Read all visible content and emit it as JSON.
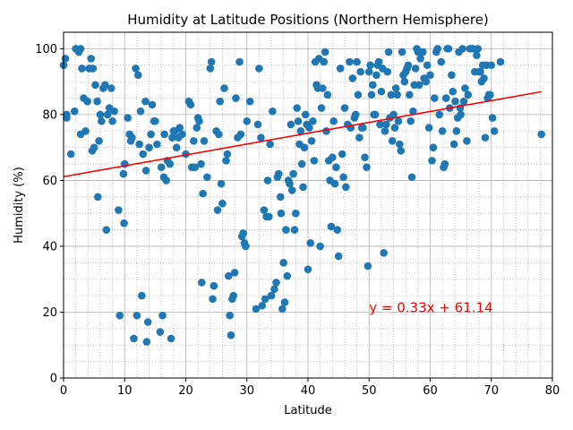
{
  "chart_data": {
    "type": "scatter",
    "title": "Humidity at Latitude Positions (Northern Hemisphere)",
    "xlabel": "Latitude",
    "ylabel": "Humidity (%)",
    "xlim": [
      0,
      80
    ],
    "ylim": [
      0,
      105
    ],
    "xticks": [
      "0",
      "10",
      "20",
      "30",
      "40",
      "50",
      "60",
      "70",
      "80"
    ],
    "yticks": [
      "0",
      "20",
      "40",
      "60",
      "80",
      "100"
    ],
    "grid": "major solid, minor dotted",
    "point_color": "#1f77b4",
    "regression": {
      "slope": 0.33,
      "intercept": 61.14,
      "x_range": [
        0,
        78.2
      ],
      "color": "#ff0000"
    },
    "annotation": {
      "text": "y = 0.33x + 61.14",
      "x": 50,
      "y": 20,
      "color": "#ff0000"
    },
    "points": [
      [
        0,
        95
      ],
      [
        0.3,
        97
      ],
      [
        0.5,
        80
      ],
      [
        0.5,
        79
      ],
      [
        1.2,
        68
      ],
      [
        1.8,
        81
      ],
      [
        2,
        100
      ],
      [
        2.5,
        99
      ],
      [
        2.8,
        100
      ],
      [
        3,
        94
      ],
      [
        2.8,
        74
      ],
      [
        3.3,
        85
      ],
      [
        3.6,
        75
      ],
      [
        3.9,
        84
      ],
      [
        4.2,
        94
      ],
      [
        4.5,
        97
      ],
      [
        4.7,
        69
      ],
      [
        4.8,
        94
      ],
      [
        5,
        70
      ],
      [
        5.2,
        89
      ],
      [
        5.5,
        84
      ],
      [
        5.6,
        55
      ],
      [
        5.8,
        72
      ],
      [
        6,
        80
      ],
      [
        6.2,
        78
      ],
      [
        6.5,
        88
      ],
      [
        6.8,
        89
      ],
      [
        7,
        45
      ],
      [
        7.2,
        80
      ],
      [
        7.5,
        82
      ],
      [
        7.8,
        88
      ],
      [
        8,
        78
      ],
      [
        8.3,
        81
      ],
      [
        9,
        51
      ],
      [
        9.2,
        19
      ],
      [
        9.8,
        62
      ],
      [
        9.9,
        47
      ],
      [
        10,
        65
      ],
      [
        10.5,
        79
      ],
      [
        10.8,
        74
      ],
      [
        11,
        72
      ],
      [
        11.2,
        73
      ],
      [
        11.5,
        12
      ],
      [
        11.8,
        94
      ],
      [
        12,
        19
      ],
      [
        12.2,
        92
      ],
      [
        12.4,
        71
      ],
      [
        12.6,
        81
      ],
      [
        12.8,
        25
      ],
      [
        13,
        68
      ],
      [
        13.4,
        84
      ],
      [
        13.5,
        63
      ],
      [
        13.6,
        11
      ],
      [
        13.8,
        17
      ],
      [
        14,
        70
      ],
      [
        14.3,
        74
      ],
      [
        14.5,
        83
      ],
      [
        14.8,
        78
      ],
      [
        15,
        78
      ],
      [
        15.3,
        71
      ],
      [
        15.8,
        14
      ],
      [
        16,
        64
      ],
      [
        16.2,
        19
      ],
      [
        16.4,
        61
      ],
      [
        16.5,
        74
      ],
      [
        16.8,
        60
      ],
      [
        17,
        66
      ],
      [
        17.4,
        65
      ],
      [
        17.6,
        12
      ],
      [
        17.8,
        73
      ],
      [
        18,
        75
      ],
      [
        18.2,
        75
      ],
      [
        18.5,
        70
      ],
      [
        18.8,
        73
      ],
      [
        19,
        76
      ],
      [
        19.4,
        74
      ],
      [
        20,
        68
      ],
      [
        20.5,
        84
      ],
      [
        20.8,
        83
      ],
      [
        21,
        64
      ],
      [
        21.3,
        72
      ],
      [
        21.5,
        64
      ],
      [
        21.8,
        76
      ],
      [
        22,
        79
      ],
      [
        22.2,
        78
      ],
      [
        22.5,
        65
      ],
      [
        22.6,
        29
      ],
      [
        22.8,
        56
      ],
      [
        23,
        72
      ],
      [
        23.5,
        61
      ],
      [
        24,
        94
      ],
      [
        24.2,
        96
      ],
      [
        24.4,
        24
      ],
      [
        24.6,
        28
      ],
      [
        25,
        75
      ],
      [
        25.2,
        51
      ],
      [
        25.4,
        74
      ],
      [
        25.6,
        84
      ],
      [
        25.8,
        59
      ],
      [
        26,
        53
      ],
      [
        26.3,
        88
      ],
      [
        26.6,
        66
      ],
      [
        26.8,
        68
      ],
      [
        27,
        31
      ],
      [
        27.2,
        19
      ],
      [
        27.4,
        13
      ],
      [
        27.6,
        24
      ],
      [
        27.8,
        25
      ],
      [
        28,
        32
      ],
      [
        28.2,
        85
      ],
      [
        28.5,
        73
      ],
      [
        28.8,
        96
      ],
      [
        29,
        74
      ],
      [
        29.2,
        43
      ],
      [
        29.4,
        44
      ],
      [
        29.6,
        41
      ],
      [
        29.8,
        40
      ],
      [
        30,
        78
      ],
      [
        30.5,
        84
      ],
      [
        31.5,
        21
      ],
      [
        31.8,
        77
      ],
      [
        32,
        94
      ],
      [
        32.3,
        73
      ],
      [
        32.5,
        22
      ],
      [
        32.8,
        51
      ],
      [
        33,
        24
      ],
      [
        33.2,
        49
      ],
      [
        33.4,
        60
      ],
      [
        33.6,
        49
      ],
      [
        33.8,
        71
      ],
      [
        34,
        25
      ],
      [
        34.2,
        81
      ],
      [
        34.5,
        27
      ],
      [
        34.8,
        29
      ],
      [
        35,
        61
      ],
      [
        35.2,
        62
      ],
      [
        35.5,
        55
      ],
      [
        35.6,
        50
      ],
      [
        35.8,
        21
      ],
      [
        36,
        35
      ],
      [
        36.2,
        23
      ],
      [
        36.4,
        45
      ],
      [
        36.6,
        31
      ],
      [
        36.8,
        60
      ],
      [
        37,
        59
      ],
      [
        37.2,
        77
      ],
      [
        37.4,
        57
      ],
      [
        37.6,
        62
      ],
      [
        37.8,
        45
      ],
      [
        38,
        50
      ],
      [
        38.2,
        82
      ],
      [
        38.4,
        78
      ],
      [
        38.6,
        71
      ],
      [
        38.8,
        75
      ],
      [
        39,
        65
      ],
      [
        39.2,
        58
      ],
      [
        39.4,
        70
      ],
      [
        39.6,
        80
      ],
      [
        39.8,
        77
      ],
      [
        40,
        33
      ],
      [
        40.2,
        76
      ],
      [
        40.4,
        41
      ],
      [
        40.6,
        72
      ],
      [
        40.8,
        78
      ],
      [
        41,
        66
      ],
      [
        41.2,
        96
      ],
      [
        41.4,
        89
      ],
      [
        41.6,
        88
      ],
      [
        41.8,
        97
      ],
      [
        42,
        40
      ],
      [
        42.2,
        82
      ],
      [
        42.4,
        88
      ],
      [
        42.6,
        96
      ],
      [
        42.8,
        99
      ],
      [
        43,
        75
      ],
      [
        43.2,
        86
      ],
      [
        43.4,
        66
      ],
      [
        43.6,
        60
      ],
      [
        43.8,
        46
      ],
      [
        44,
        67
      ],
      [
        44.2,
        78
      ],
      [
        44.4,
        59
      ],
      [
        44.6,
        64
      ],
      [
        44.8,
        45
      ],
      [
        45,
        37
      ],
      [
        45.3,
        94
      ],
      [
        45.6,
        68
      ],
      [
        45.8,
        61
      ],
      [
        46,
        82
      ],
      [
        46.2,
        58
      ],
      [
        46.5,
        77
      ],
      [
        46.8,
        96
      ],
      [
        47,
        76
      ],
      [
        47.3,
        91
      ],
      [
        47.6,
        79
      ],
      [
        47.8,
        80
      ],
      [
        48,
        96
      ],
      [
        48.2,
        86
      ],
      [
        48.4,
        73
      ],
      [
        48.6,
        93
      ],
      [
        48.8,
        76
      ],
      [
        49,
        76
      ],
      [
        49.3,
        67
      ],
      [
        49.6,
        64
      ],
      [
        49.8,
        34
      ],
      [
        50,
        93
      ],
      [
        50.2,
        95
      ],
      [
        50.4,
        86
      ],
      [
        50.6,
        89
      ],
      [
        50.8,
        80
      ],
      [
        51,
        80
      ],
      [
        51.2,
        92
      ],
      [
        51.4,
        95
      ],
      [
        51.6,
        96
      ],
      [
        51.8,
        77
      ],
      [
        52,
        87
      ],
      [
        52.2,
        94
      ],
      [
        52.4,
        38
      ],
      [
        52.6,
        75
      ],
      [
        52.8,
        77
      ],
      [
        53,
        93
      ],
      [
        53.2,
        99
      ],
      [
        53.4,
        79
      ],
      [
        53.6,
        86
      ],
      [
        53.8,
        72
      ],
      [
        54,
        80
      ],
      [
        54.2,
        76
      ],
      [
        54.4,
        88
      ],
      [
        54.6,
        86
      ],
      [
        54.8,
        78
      ],
      [
        55,
        71
      ],
      [
        55.2,
        69
      ],
      [
        55.4,
        99
      ],
      [
        55.6,
        92
      ],
      [
        55.8,
        90
      ],
      [
        56,
        93
      ],
      [
        56.2,
        94
      ],
      [
        56.4,
        95
      ],
      [
        56.6,
        86
      ],
      [
        56.8,
        78
      ],
      [
        57,
        61
      ],
      [
        57.2,
        81
      ],
      [
        57.4,
        89
      ],
      [
        57.6,
        94
      ],
      [
        57.8,
        100
      ],
      [
        58,
        99
      ],
      [
        58.2,
        89
      ],
      [
        58.4,
        97
      ],
      [
        58.6,
        99
      ],
      [
        58.8,
        99
      ],
      [
        59,
        91
      ],
      [
        59.3,
        90
      ],
      [
        59.5,
        95
      ],
      [
        59.8,
        76
      ],
      [
        60,
        92
      ],
      [
        60.3,
        66
      ],
      [
        60.5,
        70
      ],
      [
        60.7,
        85
      ],
      [
        61,
        99
      ],
      [
        61.2,
        100
      ],
      [
        61.5,
        80
      ],
      [
        61.8,
        96
      ],
      [
        62,
        75
      ],
      [
        62.2,
        64
      ],
      [
        62.4,
        65
      ],
      [
        62.6,
        85
      ],
      [
        62.8,
        100
      ],
      [
        63,
        100
      ],
      [
        63.2,
        82
      ],
      [
        63.5,
        92
      ],
      [
        63.7,
        87
      ],
      [
        63.9,
        71
      ],
      [
        64.1,
        84
      ],
      [
        64.3,
        75
      ],
      [
        64.5,
        79
      ],
      [
        64.7,
        99
      ],
      [
        64.9,
        82
      ],
      [
        65,
        80
      ],
      [
        65.3,
        100
      ],
      [
        65.5,
        84
      ],
      [
        65.7,
        88
      ],
      [
        66,
        72
      ],
      [
        66.2,
        86
      ],
      [
        66.5,
        100
      ],
      [
        66.7,
        100
      ],
      [
        67,
        100
      ],
      [
        67.3,
        93
      ],
      [
        67.6,
        98
      ],
      [
        67.8,
        100
      ],
      [
        68,
        93
      ],
      [
        68.2,
        93
      ],
      [
        68.4,
        90
      ],
      [
        68.6,
        95
      ],
      [
        68.8,
        91
      ],
      [
        69,
        73
      ],
      [
        69.2,
        95
      ],
      [
        69.4,
        85
      ],
      [
        69.6,
        86
      ],
      [
        69.8,
        86
      ],
      [
        70,
        95
      ],
      [
        70.2,
        79
      ],
      [
        70.5,
        75
      ],
      [
        71.5,
        96
      ],
      [
        78.2,
        74
      ]
    ]
  }
}
